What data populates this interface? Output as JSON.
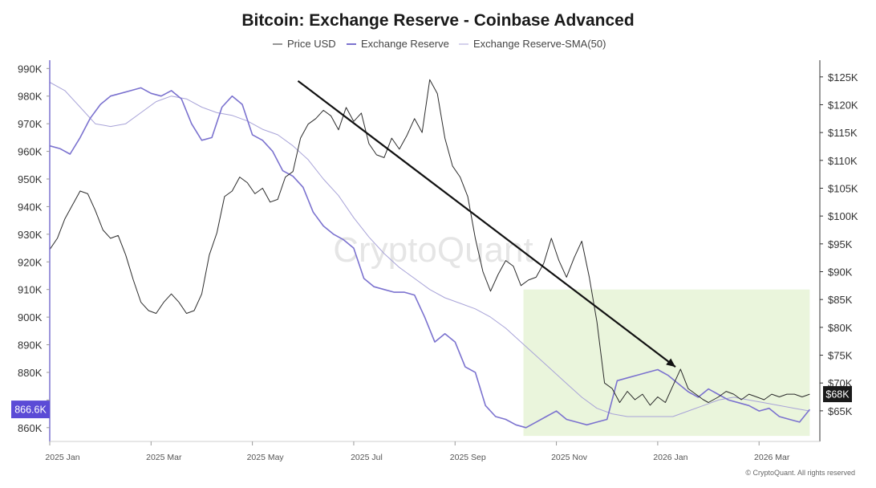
{
  "chart_data": {
    "type": "line",
    "title": "Bitcoin: Exchange Reserve - Coinbase Advanced",
    "legend_position": "top-center",
    "watermark": "CryptoQuant",
    "copyright": "© CryptoQuant. All rights reserved",
    "grid": false,
    "x_ticks": [
      "2025 Jan",
      "2025 Mar",
      "2025 May",
      "2025 Jul",
      "2025 Sep",
      "2025 Nov",
      "2026 Jan",
      "2026 Mar"
    ],
    "x_range": [
      0,
      15.2
    ],
    "left_axis": {
      "ylim": [
        855000,
        993000
      ],
      "ticks": [
        860000,
        870000,
        880000,
        890000,
        900000,
        910000,
        920000,
        930000,
        940000,
        950000,
        960000,
        970000,
        980000,
        990000
      ],
      "tick_labels": [
        "860K",
        "",
        "880K",
        "890K",
        "900K",
        "910K",
        "920K",
        "930K",
        "940K",
        "950K",
        "960K",
        "970K",
        "980K",
        "990K"
      ],
      "current_label": "866.6K",
      "current_value": 866600
    },
    "right_axis": {
      "ylim": [
        59500,
        128000
      ],
      "ticks": [
        65000,
        70000,
        75000,
        80000,
        85000,
        90000,
        95000,
        100000,
        105000,
        110000,
        115000,
        120000,
        125000
      ],
      "tick_labels": [
        "$65K",
        "$70K",
        "$75K",
        "$80K",
        "$85K",
        "$90K",
        "$95K",
        "$100K",
        "$105K",
        "$110K",
        "$115K",
        "$120K",
        "$125K"
      ],
      "current_label": "$68K",
      "current_value": 68000
    },
    "series": [
      {
        "name": "Price USD",
        "axis": "right",
        "color": "#2b2b2b",
        "x": [
          0,
          0.15,
          0.3,
          0.45,
          0.6,
          0.75,
          0.9,
          1.05,
          1.2,
          1.35,
          1.5,
          1.65,
          1.8,
          1.95,
          2.1,
          2.25,
          2.4,
          2.55,
          2.7,
          2.85,
          3.0,
          3.15,
          3.3,
          3.45,
          3.6,
          3.75,
          3.9,
          4.05,
          4.2,
          4.35,
          4.5,
          4.65,
          4.8,
          4.95,
          5.1,
          5.25,
          5.4,
          5.55,
          5.7,
          5.85,
          6.0,
          6.15,
          6.3,
          6.45,
          6.6,
          6.75,
          6.9,
          7.05,
          7.2,
          7.35,
          7.5,
          7.65,
          7.8,
          7.95,
          8.1,
          8.25,
          8.4,
          8.55,
          8.7,
          8.85,
          9.0,
          9.15,
          9.3,
          9.45,
          9.6,
          9.75,
          9.9,
          10.05,
          10.2,
          10.35,
          10.5,
          10.65,
          10.8,
          10.95,
          11.1,
          11.25,
          11.4,
          11.55,
          11.7,
          11.85,
          12.0,
          12.15,
          12.3,
          12.45,
          12.6,
          12.75,
          12.9,
          13.0,
          13.1,
          13.2,
          13.35,
          13.5,
          13.65,
          13.8,
          13.95,
          14.1,
          14.25,
          14.4,
          14.55,
          14.7,
          14.85,
          15.0
        ],
        "values": [
          94000,
          96000,
          99500,
          102000,
          104500,
          104000,
          101000,
          97500,
          96000,
          96500,
          93000,
          88500,
          84500,
          83000,
          82500,
          84500,
          86000,
          84500,
          82500,
          83000,
          86000,
          93000,
          97000,
          103500,
          104500,
          107000,
          106000,
          104000,
          105000,
          102500,
          103000,
          107000,
          108000,
          114000,
          116500,
          117500,
          119000,
          118000,
          115500,
          119500,
          117000,
          118500,
          113000,
          111000,
          110500,
          114000,
          112000,
          114500,
          117500,
          115000,
          124500,
          122000,
          114000,
          109000,
          107000,
          103500,
          96000,
          90000,
          86500,
          89500,
          92000,
          91000,
          87500,
          88500,
          89000,
          91500,
          96000,
          92000,
          89000,
          92500,
          95500,
          89000,
          81000,
          70000,
          69000,
          66500,
          68500,
          67000,
          68000,
          66000,
          67500,
          66500,
          69500,
          72500,
          69000,
          68000,
          67000,
          66500,
          67000,
          67500,
          68500,
          68000,
          67000,
          68000,
          67500,
          67000,
          68000,
          67500,
          68000,
          68000,
          67500,
          68000
        ]
      },
      {
        "name": "Exchange Reserve",
        "axis": "left",
        "color": "#7b72cf",
        "x": [
          0,
          0.2,
          0.4,
          0.6,
          0.8,
          1.0,
          1.2,
          1.4,
          1.6,
          1.8,
          2.0,
          2.2,
          2.4,
          2.6,
          2.8,
          3.0,
          3.2,
          3.4,
          3.6,
          3.8,
          4.0,
          4.2,
          4.4,
          4.6,
          4.8,
          5.0,
          5.2,
          5.4,
          5.6,
          5.8,
          6.0,
          6.2,
          6.4,
          6.6,
          6.8,
          7.0,
          7.2,
          7.4,
          7.6,
          7.8,
          8.0,
          8.2,
          8.4,
          8.6,
          8.8,
          9.0,
          9.2,
          9.4,
          9.6,
          9.8,
          10.0,
          10.2,
          10.4,
          10.6,
          10.8,
          11.0,
          11.2,
          11.4,
          11.6,
          11.8,
          12.0,
          12.2,
          12.4,
          12.6,
          12.8,
          13.0,
          13.2,
          13.4,
          13.6,
          13.8,
          14.0,
          14.2,
          14.4,
          14.6,
          14.8,
          15.0
        ],
        "values": [
          962000,
          961000,
          959000,
          965000,
          972000,
          977000,
          980000,
          981000,
          982000,
          983000,
          981000,
          980000,
          982000,
          979000,
          970000,
          964000,
          965000,
          976000,
          980000,
          977000,
          966000,
          964000,
          960000,
          953000,
          951000,
          947000,
          938000,
          933000,
          930000,
          928000,
          925000,
          914000,
          911000,
          910000,
          909000,
          909000,
          908000,
          900000,
          891000,
          894000,
          891000,
          882000,
          880000,
          868000,
          864000,
          863000,
          861000,
          860000,
          862000,
          864000,
          866000,
          863000,
          862000,
          861000,
          862000,
          863000,
          877000,
          878000,
          879000,
          880000,
          881000,
          879000,
          876000,
          873000,
          871000,
          874000,
          872000,
          870000,
          869000,
          868000,
          866000,
          867000,
          864000,
          863000,
          862000,
          866600
        ]
      },
      {
        "name": "Exchange Reserve-SMA(50)",
        "axis": "left",
        "color": "#a8a3d8",
        "x": [
          0,
          0.3,
          0.6,
          0.9,
          1.2,
          1.5,
          1.8,
          2.1,
          2.4,
          2.7,
          3.0,
          3.3,
          3.6,
          3.9,
          4.2,
          4.5,
          4.8,
          5.1,
          5.4,
          5.7,
          6.0,
          6.3,
          6.6,
          6.9,
          7.2,
          7.5,
          7.8,
          8.1,
          8.4,
          8.7,
          9.0,
          9.3,
          9.6,
          9.9,
          10.2,
          10.5,
          10.8,
          11.1,
          11.4,
          11.7,
          12.0,
          12.3,
          12.6,
          12.9,
          13.2,
          13.5,
          13.8,
          14.1,
          14.4,
          14.7,
          15.0
        ],
        "values": [
          985000,
          982000,
          976000,
          970000,
          969000,
          970000,
          974000,
          978000,
          980000,
          979000,
          976000,
          974000,
          973000,
          971000,
          968000,
          966000,
          962000,
          957000,
          950000,
          944000,
          936000,
          929000,
          923000,
          918000,
          914000,
          910000,
          907000,
          905000,
          903000,
          900000,
          896000,
          891000,
          886000,
          881000,
          876000,
          871000,
          867000,
          865000,
          864000,
          864000,
          864000,
          864000,
          866000,
          868000,
          870000,
          871000,
          870000,
          869000,
          868000,
          867000,
          866000
        ]
      }
    ],
    "annotations": [
      {
        "type": "arrow",
        "from": [
          4.9,
          985500
        ],
        "to": [
          12.35,
          882000
        ],
        "color": "#111111"
      },
      {
        "type": "shaded_region",
        "x": [
          9.35,
          15.0
        ],
        "ylim": [
          857000,
          910000
        ],
        "color": "#eaf5dc"
      }
    ]
  }
}
